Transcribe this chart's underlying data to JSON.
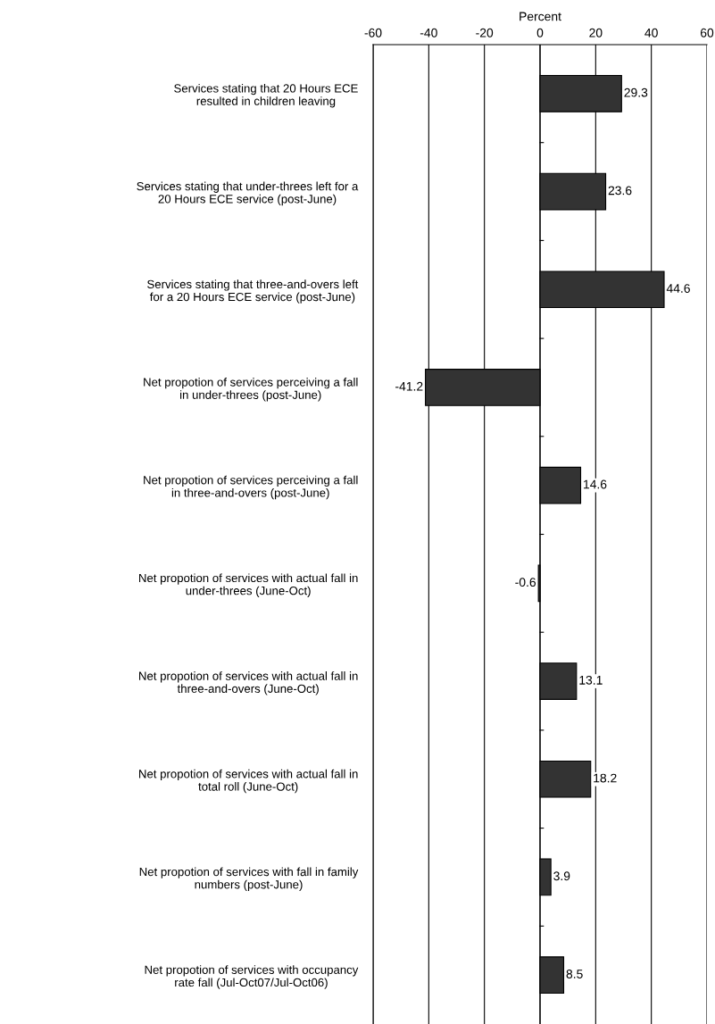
{
  "chart_data": {
    "type": "bar",
    "orientation": "horizontal",
    "xlabel": "Percent",
    "categories": [
      "Services stating that 20 Hours ECE\nresulted in children leaving",
      "Services stating that under-threes left for a\n20 Hours ECE service (post-June)",
      "Services stating that three-and-overs left\nfor a 20 Hours ECE service (post-June)",
      "Net propotion of services perceiving a fall\nin under-threes (post-June)",
      "Net propotion of services perceiving a fall\nin three-and-overs (post-June)",
      "Net propotion of services with actual fall in\nunder-threes (June-Oct)",
      "Net propotion of services with actual fall in\nthree-and-overs (June-Oct)",
      "Net propotion of services with actual fall in\ntotal roll (June-Oct)",
      "Net propotion of services with fall in family\nnumbers (post-June)",
      "Net propotion of services with occupancy\nrate fall (Jul-Oct07/Jul-Oct06)"
    ],
    "values": [
      29.3,
      23.6,
      44.6,
      -41.2,
      14.6,
      -0.6,
      13.1,
      18.2,
      3.9,
      8.5
    ],
    "color": "#333333",
    "xlim": [
      -60,
      60
    ],
    "xticks": [
      -60,
      -40,
      -20,
      0,
      20,
      40,
      60
    ],
    "grid": "x",
    "data_labels": true
  }
}
